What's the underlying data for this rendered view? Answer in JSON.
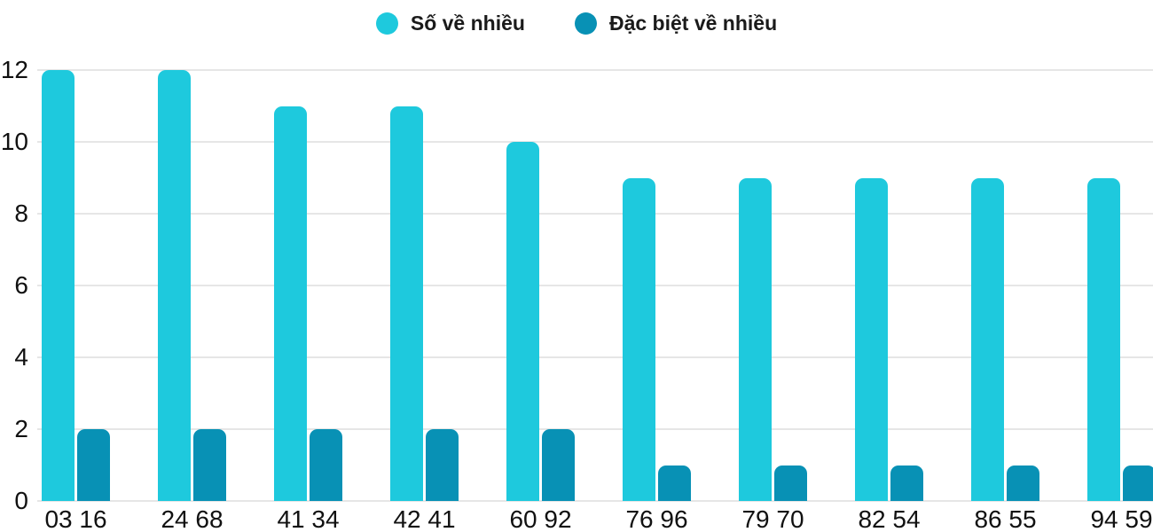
{
  "legend": {
    "items": [
      {
        "label": "Số về nhiều",
        "color": "#1EC9DD"
      },
      {
        "label": "Đặc biệt về nhiều",
        "color": "#0891B5"
      }
    ]
  },
  "chart_data": {
    "type": "bar",
    "title": "",
    "xlabel": "",
    "ylabel": "",
    "categories": [
      "03 16",
      "24 68",
      "41 34",
      "42 41",
      "60 92",
      "76 96",
      "79 70",
      "82 54",
      "86 55",
      "94 59"
    ],
    "series": [
      {
        "name": "Số về nhiều",
        "color": "#1EC9DD",
        "values": [
          12,
          12,
          11,
          11,
          10,
          9,
          9,
          9,
          9,
          9
        ]
      },
      {
        "name": "Đặc biệt về nhiều",
        "color": "#0891B5",
        "values": [
          2,
          2,
          2,
          2,
          2,
          1,
          1,
          1,
          1,
          1
        ]
      }
    ],
    "yticks": [
      0,
      2,
      4,
      6,
      8,
      10,
      12
    ],
    "ylim": [
      0,
      12
    ],
    "grid": true,
    "legend_position": "top-center"
  },
  "colors": {
    "grid": "#e6e6e6",
    "axis_text": "#111111",
    "legend_text": "#1a1a1a",
    "background": "#ffffff"
  }
}
